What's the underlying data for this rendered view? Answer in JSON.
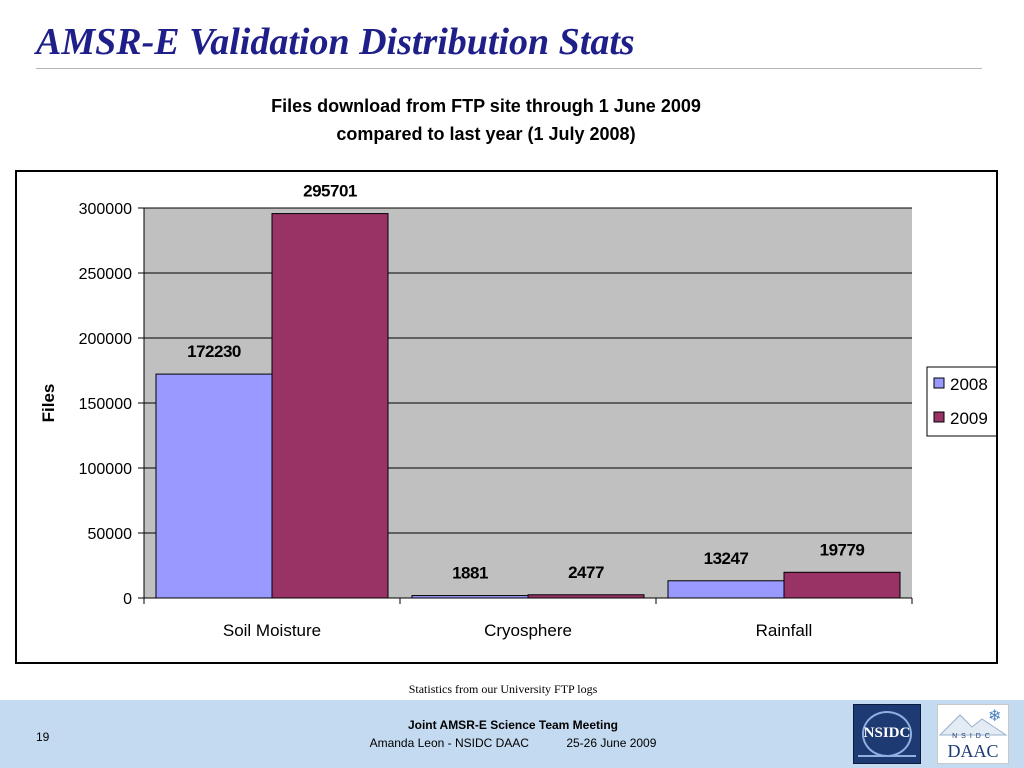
{
  "slide": {
    "title": "AMSR-E Validation Distribution Stats",
    "caption": "Statistics from our University FTP logs",
    "footer": {
      "page_number": "19",
      "meeting": "Joint AMSR-E Science Team Meeting",
      "presenter": "Amanda Leon - NSIDC DAAC",
      "dates": "25-26 June 2009"
    },
    "logos": {
      "nsidc": "NSIDC",
      "daac_small": "NSIDC",
      "daac": "DAAC"
    }
  },
  "chart_data": {
    "type": "bar",
    "title_lines": [
      "Files download from FTP site through 1 June 2009",
      "compared to last year (1 July 2008)"
    ],
    "xlabel": "",
    "ylabel": "Files",
    "categories": [
      "Soil Moisture",
      "Cryosphere",
      "Rainfall"
    ],
    "series": [
      {
        "name": "2008",
        "values": [
          172230,
          1881,
          13247
        ],
        "color": "#9999ff"
      },
      {
        "name": "2009",
        "values": [
          295701,
          2477,
          19779
        ],
        "color": "#993366"
      }
    ],
    "ylim": [
      0,
      300000
    ],
    "yticks": [
      0,
      50000,
      100000,
      150000,
      200000,
      250000,
      300000
    ],
    "grid": true,
    "plot_background": "#c0c0c0",
    "legend": "right",
    "data_labels": true
  }
}
